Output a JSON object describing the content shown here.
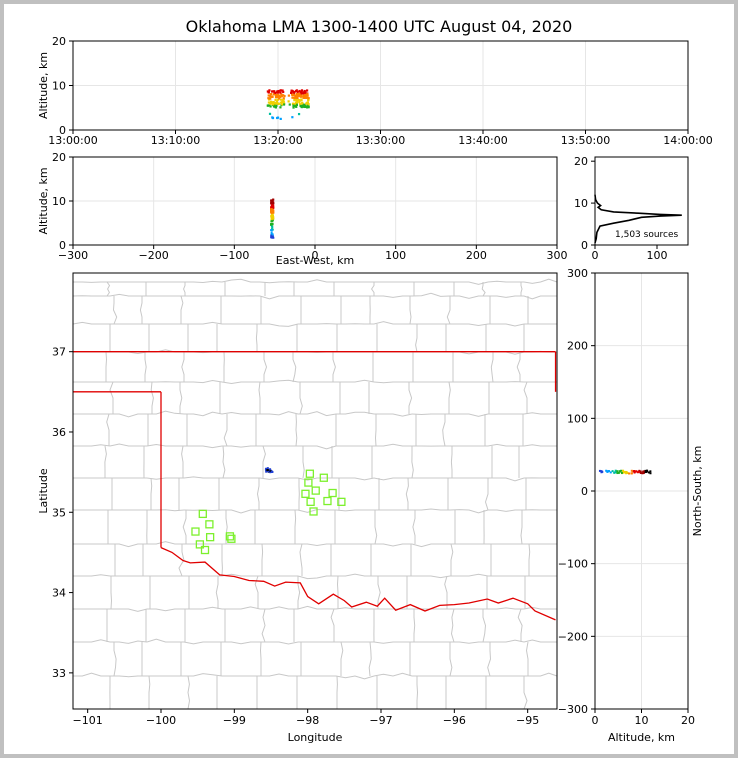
{
  "chart_data": {
    "title": "Oklahoma LMA 1300-1400 UTC August 04, 2020",
    "panels": {
      "time_height": {
        "type": "scatter",
        "ylabel": "Altitude, km",
        "x_ticks": [
          "13:00:00",
          "13:10:00",
          "13:20:00",
          "13:30:00",
          "13:40:00",
          "13:50:00",
          "14:00:00"
        ],
        "x_range_minutes": [
          0,
          60
        ],
        "ylim": [
          0,
          20
        ],
        "y_ticks": [
          0,
          10,
          20
        ],
        "grid": true,
        "activity_minutes": [
          19.0,
          23.0
        ],
        "altitude_range_km": [
          2.5,
          9.5
        ]
      },
      "ew_height": {
        "type": "scatter",
        "xlabel": "East-West, km",
        "ylabel": "Altitude, km",
        "xlim": [
          -300,
          300
        ],
        "x_ticks": [
          -300,
          -200,
          -100,
          0,
          100,
          200,
          300
        ],
        "ylim": [
          0,
          20
        ],
        "y_ticks": [
          0,
          10,
          20
        ],
        "grid": true,
        "east_west_km": -53,
        "altitude_range_km": [
          1,
          10.5
        ]
      },
      "altitude_histogram": {
        "type": "line",
        "xlim": [
          0,
          150
        ],
        "x_ticks": [
          0,
          100
        ],
        "ylim": [
          0,
          21
        ],
        "y_ticks": [
          0,
          10,
          20
        ],
        "annotation": "1,503 sources",
        "profile": [
          [
            0,
            0.5
          ],
          [
            2,
            1.5
          ],
          [
            3,
            3
          ],
          [
            8,
            4.5
          ],
          [
            30,
            5.2
          ],
          [
            55,
            5.9
          ],
          [
            75,
            6.6
          ],
          [
            105,
            6.9
          ],
          [
            140,
            7.1
          ],
          [
            105,
            7.3
          ],
          [
            70,
            7.6
          ],
          [
            30,
            7.9
          ],
          [
            10,
            8.4
          ],
          [
            5,
            9.0
          ],
          [
            9,
            9.4
          ],
          [
            4,
            10.0
          ],
          [
            1,
            10.8
          ],
          [
            0,
            12
          ]
        ]
      },
      "plan_view": {
        "type": "map",
        "xlabel": "Longitude",
        "ylabel": "Latitude",
        "xlim": [
          -101.2,
          -94.6
        ],
        "ylim": [
          32.55,
          37.98
        ],
        "x_ticks": [
          -101,
          -100,
          -99,
          -98,
          -97,
          -96,
          -95
        ],
        "y_ticks": [
          33,
          34,
          35,
          36,
          37
        ],
        "colors": {
          "state_border": "#e00000",
          "county_line": "#c8c8c8",
          "station": "#7cf02c"
        },
        "stations": [
          [
            -97.97,
            35.48
          ],
          [
            -97.99,
            35.37
          ],
          [
            -97.78,
            35.43
          ],
          [
            -98.03,
            35.23
          ],
          [
            -97.89,
            35.27
          ],
          [
            -97.66,
            35.24
          ],
          [
            -97.96,
            35.13
          ],
          [
            -97.73,
            35.14
          ],
          [
            -97.54,
            35.13
          ],
          [
            -97.92,
            35.01
          ],
          [
            -99.43,
            34.98
          ],
          [
            -99.34,
            34.85
          ],
          [
            -99.53,
            34.76
          ],
          [
            -99.33,
            34.69
          ],
          [
            -99.06,
            34.7
          ],
          [
            -99.47,
            34.6
          ],
          [
            -99.4,
            34.53
          ],
          [
            -99.04,
            34.67
          ]
        ],
        "source_cluster": {
          "lon_range": [
            -98.57,
            -98.48
          ],
          "lat_range": [
            35.49,
            35.55
          ]
        }
      },
      "ns_altitude": {
        "type": "scatter",
        "xlabel": "Altitude, km",
        "ylabel": "North-South, km",
        "xlim": [
          0,
          20
        ],
        "x_ticks": [
          0,
          10,
          20
        ],
        "ylim": [
          -300,
          300
        ],
        "y_ticks": [
          -300,
          -200,
          -100,
          0,
          100,
          200,
          300
        ],
        "grid": true,
        "north_south_km": 26,
        "altitude_range_km": [
          1,
          12
        ]
      }
    }
  }
}
